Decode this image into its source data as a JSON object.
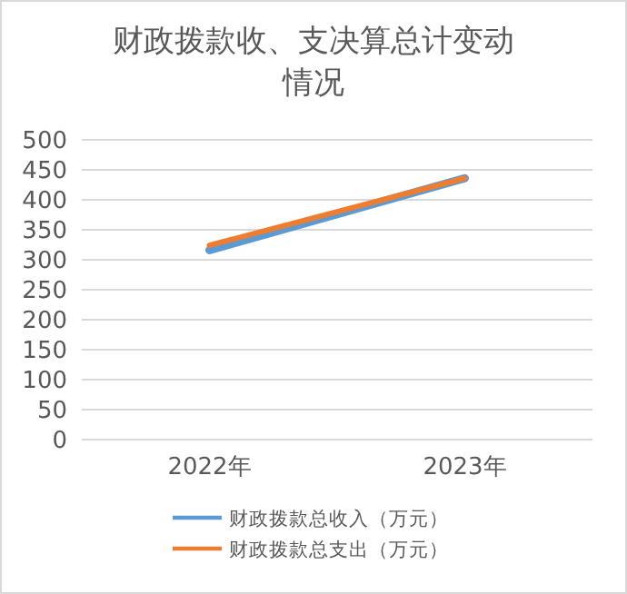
{
  "chart_data": {
    "type": "line",
    "title": "财政拨款收、支决算总计变动情况",
    "categories": [
      "2022年",
      "2023年"
    ],
    "series": [
      {
        "name": "财政拨款总收入（万元）",
        "color": "#5b9bd5",
        "values": [
          316,
          436
        ]
      },
      {
        "name": "财政拨款总支出（万元）",
        "color": "#ed7d31",
        "values": [
          324,
          436
        ]
      }
    ],
    "ylim": [
      0,
      500
    ],
    "yticks": [
      0,
      50,
      100,
      150,
      200,
      250,
      300,
      350,
      400,
      450,
      500
    ],
    "grid": "y",
    "legend": "bottom",
    "marker": "none",
    "line_style": "solid"
  }
}
